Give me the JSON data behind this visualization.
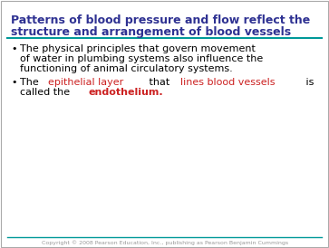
{
  "title_line1": "Patterns of blood pressure and flow reflect the",
  "title_line2": "structure and arrangement of blood vessels",
  "title_color": "#2E3192",
  "bg_color": "#FFFFFF",
  "border_color": "#AAAAAA",
  "teal_line_color": "#009999",
  "bullet1_line1": "The physical principles that govern movement",
  "bullet1_line2": "of water in plumbing systems also influence the",
  "bullet1_line3": "functioning of animal circulatory systems.",
  "bullet2_line1_parts": [
    {
      "text": "The ",
      "color": "#000000",
      "bold": false
    },
    {
      "text": "epithelial layer",
      "color": "#CC2222",
      "bold": false
    },
    {
      "text": " that ",
      "color": "#000000",
      "bold": false
    },
    {
      "text": "lines blood vessels",
      "color": "#CC2222",
      "bold": false
    },
    {
      "text": " is",
      "color": "#000000",
      "bold": false
    }
  ],
  "bullet2_line2_parts": [
    {
      "text": "called the ",
      "color": "#000000",
      "bold": false
    },
    {
      "text": "endothelium.",
      "color": "#CC2222",
      "bold": true
    }
  ],
  "footer_text": "Copyright © 2008 Pearson Education, Inc., publishing as Pearson Benjamin Cummings",
  "footer_color": "#999999",
  "font_size_title": 9.0,
  "font_size_body": 8.0,
  "font_size_footer": 4.5
}
